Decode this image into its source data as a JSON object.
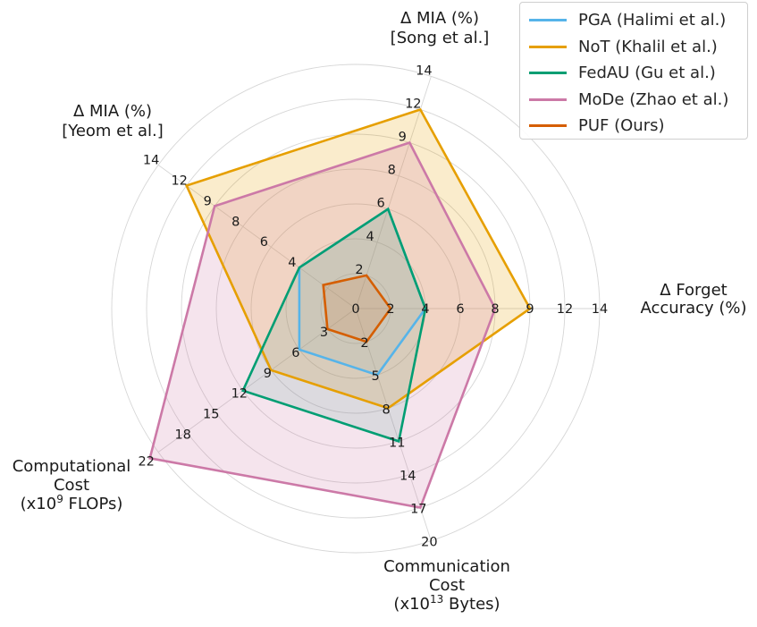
{
  "chart_data": {
    "type": "radar",
    "axes": [
      {
        "key": "forget_acc",
        "label": [
          "Δ Forget",
          "Accuracy (%)"
        ]
      },
      {
        "key": "mia_song",
        "label": [
          "Δ MIA (%)",
          "[Song et al.]"
        ]
      },
      {
        "key": "mia_yeom",
        "label": [
          "Δ MIA (%)",
          "[Yeom et al.]"
        ]
      },
      {
        "key": "comp_cost",
        "label": [
          "Computational",
          "Cost",
          "(x10^9 FLOPs)"
        ]
      },
      {
        "key": "comm_cost",
        "label": [
          "Communication",
          "Cost",
          "(x10^13 Bytes)"
        ]
      }
    ],
    "axis_ticks": [
      [
        "0",
        "2",
        "4",
        "6",
        "8",
        "9",
        "12",
        "14"
      ],
      [
        "2",
        "4",
        "6",
        "8",
        "9",
        "12",
        "14"
      ],
      [
        "4",
        "6",
        "8",
        "9",
        "12",
        "14"
      ],
      [
        "3",
        "6",
        "9",
        "12",
        "15",
        "18",
        "22"
      ],
      [
        "2",
        "5",
        "8",
        "11",
        "14",
        "17",
        "20"
      ]
    ],
    "axis_tick_positions": [
      [
        0,
        1,
        2,
        3,
        4,
        5,
        6,
        7
      ],
      [
        1,
        2,
        3,
        4,
        5,
        6,
        7
      ],
      [
        2,
        3,
        4,
        5,
        6,
        7
      ],
      [
        1,
        2,
        3,
        4,
        5,
        6,
        7.3
      ],
      [
        1,
        2,
        3,
        4,
        5,
        6,
        7
      ]
    ],
    "rmax": 7,
    "series": [
      {
        "name": "PGA (Halimi et al.)",
        "color": "#56B4E9",
        "fill": false,
        "values": {
          "forget_acc": 4,
          "mia_song": 6,
          "mia_yeom": 4,
          "comp_cost": 6,
          "comm_cost": 5
        }
      },
      {
        "name": "NoT (Khalil et al.)",
        "color": "#E69F00",
        "fill": true,
        "values": {
          "forget_acc": 9,
          "mia_song": 12,
          "mia_yeom": 12,
          "comp_cost": 9,
          "comm_cost": 8
        }
      },
      {
        "name": "FedAU (Gu et al.)",
        "color": "#009E73",
        "fill": false,
        "values": {
          "forget_acc": 4,
          "mia_song": 6,
          "mia_yeom": 4,
          "comp_cost": 12,
          "comm_cost": 11
        }
      },
      {
        "name": "MoDe (Zhao et al.)",
        "color": "#CC79A7",
        "fill": true,
        "values": {
          "forget_acc": 8,
          "mia_song": 9,
          "mia_yeom": 9,
          "comp_cost": 22,
          "comm_cost": 17
        }
      },
      {
        "name": "PUF (Ours)",
        "color": "#D55E00",
        "fill": false,
        "values": {
          "forget_acc": 2,
          "mia_song": 2,
          "mia_yeom": 2.3,
          "comp_cost": 3,
          "comm_cost": 2
        }
      }
    ]
  }
}
